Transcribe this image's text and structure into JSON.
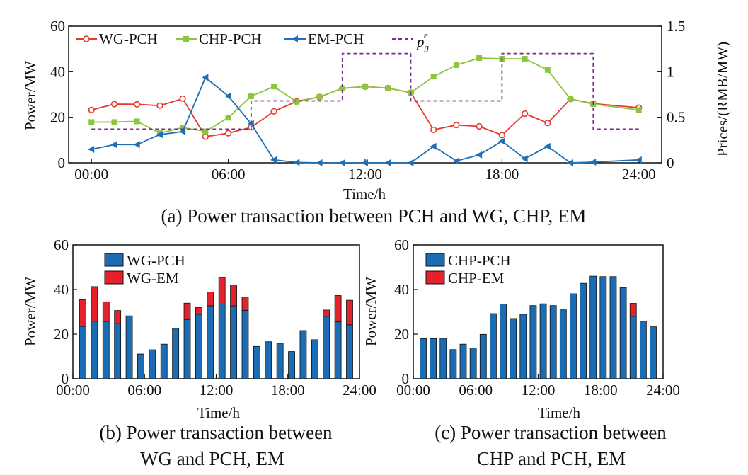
{
  "chart_data": [
    {
      "id": "a",
      "type": "line",
      "caption": "(a) Power transaction between PCH and WG, CHP, EM",
      "xlabel": "Time/h",
      "ylabel": "Power/MW",
      "y2label": "Prices/(RMB/MW)",
      "xticks": [
        "00:00",
        "06:00",
        "12:00",
        "18:00",
        "24:00"
      ],
      "yticks": [
        "0",
        "20",
        "40",
        "60"
      ],
      "y2ticks": [
        "0",
        "0.5",
        "1",
        "1.5"
      ],
      "xlim": [
        -1,
        25
      ],
      "ylim": [
        0,
        60
      ],
      "y2lim": [
        0,
        1.5
      ],
      "legend": {
        "placement": "top",
        "label_main": "p",
        "label_sub": "g",
        "label_sup": "e"
      },
      "x": [
        0,
        1,
        2,
        3,
        4,
        5,
        6,
        7,
        8,
        9,
        10,
        11,
        12,
        13,
        14,
        15,
        16,
        17,
        18,
        19,
        20,
        21,
        22,
        23,
        24
      ],
      "series": [
        {
          "name": "WG-PCH",
          "color": "#e8392c",
          "marker": "circle",
          "values": [
            23.2,
            25.8,
            25.7,
            25.1,
            28.2,
            11.5,
            13.0,
            15.6,
            22.6,
            27.0,
            28.9,
            32.7,
            33.5,
            32.8,
            30.8,
            14.5,
            16.6,
            16.0,
            12.2,
            21.6,
            17.5,
            28.0,
            26.0,
            null,
            24.2
          ]
        },
        {
          "name": "CHP-PCH",
          "color": "#8cc63f",
          "marker": "square",
          "values": [
            17.9,
            17.9,
            18.2,
            13.0,
            15.5,
            13.8,
            19.8,
            29.2,
            33.5,
            26.8,
            28.9,
            32.7,
            33.5,
            32.8,
            30.8,
            37.9,
            42.9,
            46.0,
            45.7,
            45.7,
            40.8,
            28.0,
            25.8,
            null,
            23.2
          ]
        },
        {
          "name": "EM-PCH",
          "color": "#1f6fb4",
          "marker": "triangle",
          "values": [
            5.9,
            8.0,
            8.0,
            12.4,
            13.7,
            37.5,
            29.3,
            17.2,
            1.3,
            0.2,
            0.0,
            0.0,
            0.0,
            0.0,
            0.0,
            7.2,
            0.8,
            3.5,
            9.5,
            1.8,
            7.2,
            0.0,
            0.3,
            null,
            1.3
          ]
        },
        {
          "name": "price",
          "color": "#7b2d8e",
          "dashed": true,
          "axis": "right",
          "step": true,
          "steps": [
            [
              0,
              5,
              0.37
            ],
            [
              5,
              7,
              0.37
            ],
            [
              7,
              10,
              0.68
            ],
            [
              10,
              11,
              0.68
            ],
            [
              11,
              14,
              1.2
            ],
            [
              14,
              18,
              0.68
            ],
            [
              18,
              22,
              1.2
            ],
            [
              22,
              24,
              0.37
            ]
          ]
        }
      ]
    },
    {
      "id": "b",
      "type": "bar",
      "stacked": true,
      "caption_lines": [
        "(b) Power transaction between",
        "WG and PCH, EM"
      ],
      "xlabel": "Time/h",
      "ylabel": "Power/MW",
      "xticks": [
        "00:00",
        "06:00",
        "12:00",
        "18:00",
        "24:00"
      ],
      "yticks": [
        "0",
        "20",
        "40",
        "60"
      ],
      "ylim": [
        0,
        60
      ],
      "legend": {
        "placement": "top-left"
      },
      "x": [
        0,
        1,
        2,
        3,
        4,
        5,
        6,
        7,
        8,
        9,
        10,
        11,
        12,
        13,
        14,
        15,
        16,
        17,
        18,
        19,
        20,
        21,
        22,
        23
      ],
      "series": [
        {
          "name": "WG-PCH",
          "color": "#1a6db5",
          "values": [
            23.5,
            25.8,
            25.7,
            24.7,
            28.2,
            11.1,
            13.0,
            15.5,
            22.6,
            26.6,
            28.9,
            32.7,
            33.5,
            32.7,
            30.7,
            14.5,
            16.6,
            15.9,
            12.2,
            21.6,
            17.5,
            28.0,
            25.5,
            24.2
          ]
        },
        {
          "name": "WG-EM",
          "color": "#e5222b",
          "values": [
            12.0,
            15.5,
            8.8,
            5.9,
            0,
            0,
            0,
            0,
            0,
            7.3,
            3.1,
            6.2,
            11.9,
            9.3,
            5.9,
            0,
            0,
            0,
            0,
            0,
            0,
            2.8,
            11.8,
            11.0
          ]
        }
      ]
    },
    {
      "id": "c",
      "type": "bar",
      "stacked": true,
      "caption_lines": [
        "(c) Power transaction between",
        "CHP and PCH, EM"
      ],
      "xlabel": "Time/h",
      "ylabel": "Power/MW",
      "xticks": [
        "00:00",
        "06:00",
        "12:00",
        "18:00",
        "24:00"
      ],
      "yticks": [
        "0",
        "20",
        "40",
        "60"
      ],
      "ylim": [
        0,
        60
      ],
      "legend": {
        "placement": "top-left"
      },
      "x": [
        0,
        1,
        2,
        3,
        4,
        5,
        6,
        7,
        8,
        9,
        10,
        11,
        12,
        13,
        14,
        15,
        16,
        17,
        18,
        19,
        20,
        21,
        22,
        23
      ],
      "series": [
        {
          "name": "CHP-PCH",
          "color": "#1a6db5",
          "values": [
            18.0,
            18.0,
            18.1,
            13.1,
            15.5,
            13.8,
            19.9,
            29.2,
            33.5,
            27.0,
            28.9,
            32.8,
            33.6,
            32.8,
            30.9,
            38.1,
            42.8,
            46.0,
            45.8,
            45.8,
            40.8,
            28.0,
            25.8,
            23.3
          ]
        },
        {
          "name": "CHP-EM",
          "color": "#e5222b",
          "values": [
            0,
            0,
            0,
            0,
            0,
            0,
            0,
            0,
            0,
            0,
            0,
            0,
            0,
            0,
            0,
            0,
            0,
            0,
            0,
            0,
            0,
            5.8,
            0,
            0
          ]
        }
      ]
    }
  ]
}
